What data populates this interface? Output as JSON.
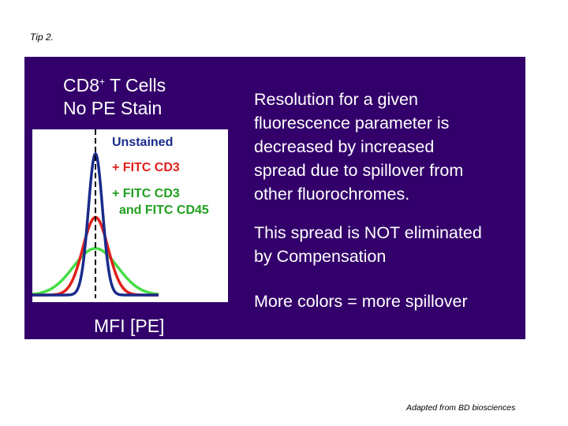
{
  "tip_label": "Tip 2.",
  "panel": {
    "title_line1_pre": "CD8",
    "title_line1_sup": "+",
    "title_line1_post": " T Cells",
    "title_line2": "No PE Stain",
    "x_axis_label": "MFI [PE]",
    "legend": [
      {
        "text": "Unstained",
        "color": "#1a2b8c"
      },
      {
        "text": "+ FITC CD3",
        "color": "#e0201b"
      },
      {
        "text": "+ FITC CD3",
        "color": "#20a020"
      },
      {
        "text": "and FITC CD45",
        "color": "#20a020"
      }
    ],
    "paragraphs": [
      [
        "Resolution for a given",
        "fluorescence parameter is",
        "decreased by increased",
        "spread due to spillover from",
        "other fluorochromes."
      ],
      [
        "This spread is NOT eliminated",
        "by Compensation"
      ],
      [
        "More colors = more spillover"
      ]
    ]
  },
  "credit": "Adapted from BD biosciences",
  "colors": {
    "panel_bg": "#33006b",
    "unstained": "#1a2b8c",
    "fitc_cd3": "#e0201b",
    "fitc_cd3_cd45": "#44dd44"
  },
  "chart_data": {
    "type": "line",
    "xlabel": "MFI [PE]",
    "series": [
      {
        "name": "Unstained",
        "color": "#1a2b8c",
        "mean": 0,
        "sd": 0.45,
        "peak": 1.0
      },
      {
        "name": "+ FITC CD3",
        "color": "#e0201b",
        "mean": 0,
        "sd": 0.8,
        "peak": 0.55
      },
      {
        "name": "+ FITC CD3 and FITC CD45",
        "color": "#44dd44",
        "mean": 0,
        "sd": 1.4,
        "peak": 0.33
      }
    ],
    "x_range": [
      -4,
      4
    ],
    "y_range": [
      0,
      1.05
    ],
    "center_marker": "dashed vertical line at mean"
  }
}
